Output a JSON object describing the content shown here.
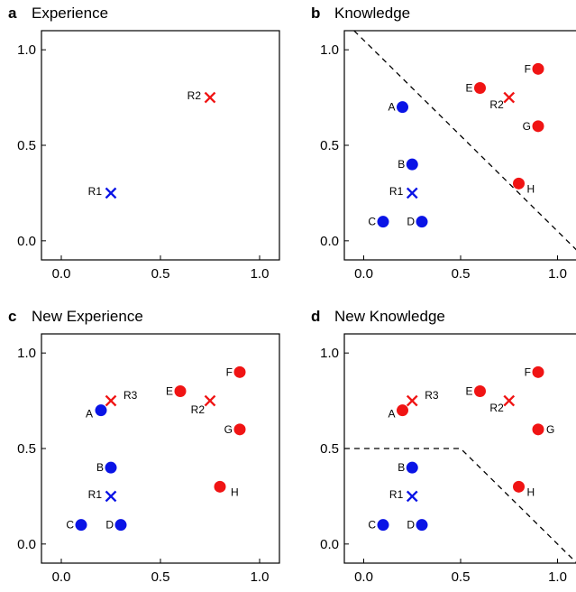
{
  "colors": {
    "blue": "#0a14e6",
    "red": "#f01414",
    "axis": "#000000"
  },
  "chart_data": [
    {
      "panel": "a",
      "title": "Experience",
      "type": "scatter",
      "xlim": [
        -0.1,
        1.1
      ],
      "ylim": [
        -0.1,
        1.1
      ],
      "xticks": [
        "0.0",
        "0.5",
        "1.0"
      ],
      "yticks": [
        "0.0",
        "0.5",
        "1.0"
      ],
      "points": [
        {
          "label": "R1",
          "x": 0.25,
          "y": 0.25,
          "color": "blue",
          "marker": "x"
        },
        {
          "label": "R2",
          "x": 0.75,
          "y": 0.75,
          "color": "red",
          "marker": "x"
        }
      ],
      "boundary": []
    },
    {
      "panel": "b",
      "title": "Knowledge",
      "type": "scatter",
      "xlim": [
        -0.1,
        1.1
      ],
      "ylim": [
        -0.1,
        1.1
      ],
      "xticks": [
        "0.0",
        "0.5",
        "1.0"
      ],
      "yticks": [
        "0.0",
        "0.5",
        "1.0"
      ],
      "points": [
        {
          "label": "A",
          "x": 0.2,
          "y": 0.7,
          "color": "blue",
          "marker": "o"
        },
        {
          "label": "B",
          "x": 0.25,
          "y": 0.4,
          "color": "blue",
          "marker": "o"
        },
        {
          "label": "C",
          "x": 0.1,
          "y": 0.1,
          "color": "blue",
          "marker": "o"
        },
        {
          "label": "D",
          "x": 0.3,
          "y": 0.1,
          "color": "blue",
          "marker": "o"
        },
        {
          "label": "R1",
          "x": 0.25,
          "y": 0.25,
          "color": "blue",
          "marker": "x"
        },
        {
          "label": "E",
          "x": 0.6,
          "y": 0.8,
          "color": "red",
          "marker": "o"
        },
        {
          "label": "F",
          "x": 0.9,
          "y": 0.9,
          "color": "red",
          "marker": "o"
        },
        {
          "label": "G",
          "x": 0.9,
          "y": 0.6,
          "color": "red",
          "marker": "o"
        },
        {
          "label": "H",
          "x": 0.8,
          "y": 0.3,
          "color": "red",
          "marker": "o"
        },
        {
          "label": "R2",
          "x": 0.75,
          "y": 0.75,
          "color": "red",
          "marker": "x"
        }
      ],
      "boundary": [
        [
          -0.05,
          1.1
        ],
        [
          1.1,
          -0.05
        ]
      ]
    },
    {
      "panel": "c",
      "title": "New Experience",
      "type": "scatter",
      "xlim": [
        -0.1,
        1.1
      ],
      "ylim": [
        -0.1,
        1.1
      ],
      "xticks": [
        "0.0",
        "0.5",
        "1.0"
      ],
      "yticks": [
        "0.0",
        "0.5",
        "1.0"
      ],
      "points": [
        {
          "label": "A",
          "x": 0.2,
          "y": 0.7,
          "color": "blue",
          "marker": "o"
        },
        {
          "label": "B",
          "x": 0.25,
          "y": 0.4,
          "color": "blue",
          "marker": "o"
        },
        {
          "label": "C",
          "x": 0.1,
          "y": 0.1,
          "color": "blue",
          "marker": "o"
        },
        {
          "label": "D",
          "x": 0.3,
          "y": 0.1,
          "color": "blue",
          "marker": "o"
        },
        {
          "label": "R1",
          "x": 0.25,
          "y": 0.25,
          "color": "blue",
          "marker": "x"
        },
        {
          "label": "E",
          "x": 0.6,
          "y": 0.8,
          "color": "red",
          "marker": "o"
        },
        {
          "label": "F",
          "x": 0.9,
          "y": 0.9,
          "color": "red",
          "marker": "o"
        },
        {
          "label": "G",
          "x": 0.9,
          "y": 0.6,
          "color": "red",
          "marker": "o"
        },
        {
          "label": "H",
          "x": 0.8,
          "y": 0.3,
          "color": "red",
          "marker": "o"
        },
        {
          "label": "R2",
          "x": 0.75,
          "y": 0.75,
          "color": "red",
          "marker": "x"
        },
        {
          "label": "R3",
          "x": 0.25,
          "y": 0.75,
          "color": "red",
          "marker": "x"
        }
      ],
      "boundary": []
    },
    {
      "panel": "d",
      "title": "New Knowledge",
      "type": "scatter",
      "xlim": [
        -0.1,
        1.1
      ],
      "ylim": [
        -0.1,
        1.1
      ],
      "xticks": [
        "0.0",
        "0.5",
        "1.0"
      ],
      "yticks": [
        "0.0",
        "0.5",
        "1.0"
      ],
      "points": [
        {
          "label": "A",
          "x": 0.2,
          "y": 0.7,
          "color": "red",
          "marker": "o"
        },
        {
          "label": "B",
          "x": 0.25,
          "y": 0.4,
          "color": "blue",
          "marker": "o"
        },
        {
          "label": "C",
          "x": 0.1,
          "y": 0.1,
          "color": "blue",
          "marker": "o"
        },
        {
          "label": "D",
          "x": 0.3,
          "y": 0.1,
          "color": "blue",
          "marker": "o"
        },
        {
          "label": "R1",
          "x": 0.25,
          "y": 0.25,
          "color": "blue",
          "marker": "x"
        },
        {
          "label": "E",
          "x": 0.6,
          "y": 0.8,
          "color": "red",
          "marker": "o"
        },
        {
          "label": "F",
          "x": 0.9,
          "y": 0.9,
          "color": "red",
          "marker": "o"
        },
        {
          "label": "G",
          "x": 0.9,
          "y": 0.6,
          "color": "red",
          "marker": "o"
        },
        {
          "label": "H",
          "x": 0.8,
          "y": 0.3,
          "color": "red",
          "marker": "o"
        },
        {
          "label": "R2",
          "x": 0.75,
          "y": 0.75,
          "color": "red",
          "marker": "x"
        },
        {
          "label": "R3",
          "x": 0.25,
          "y": 0.75,
          "color": "red",
          "marker": "x"
        }
      ],
      "boundary": [
        [
          -0.1,
          0.5
        ],
        [
          0.5,
          0.5
        ],
        [
          1.1,
          -0.1
        ]
      ]
    }
  ]
}
